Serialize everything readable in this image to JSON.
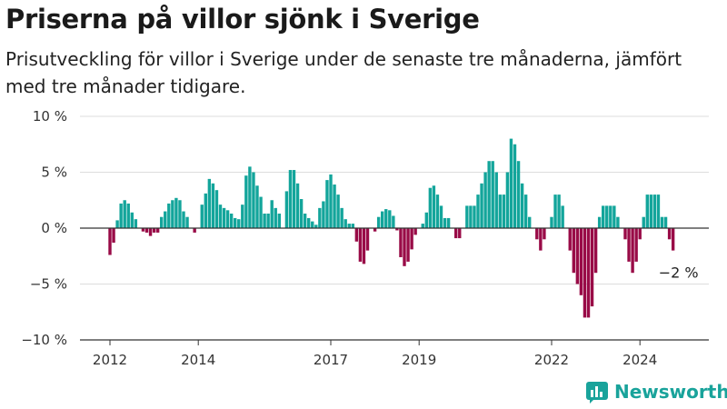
{
  "header": {
    "title": "Priserna på villor sjönk i Sverige",
    "subtitle": "Prisutveckling för villor i Sverige under de senaste tre månaderna, jämfört med tre månader tidigare."
  },
  "brand": {
    "name": "Newsworthy",
    "icon": "newsworthy-logo-icon"
  },
  "colors": {
    "positive": "#13a59b",
    "negative": "#990b47",
    "grid": "#dddddd",
    "axis": "#333333"
  },
  "chart_data": {
    "type": "bar",
    "title": "Priserna på villor sjönk i Sverige",
    "ylabel": "",
    "xlabel": "",
    "ylim": [
      -10,
      10
    ],
    "yticks": [
      {
        "value": 10,
        "label": "10 %"
      },
      {
        "value": 5,
        "label": "5 %"
      },
      {
        "value": 0,
        "label": "0 %"
      },
      {
        "value": -5,
        "label": "−5 %"
      },
      {
        "value": -10,
        "label": "−10 %"
      }
    ],
    "xticks": [
      {
        "value": 2012,
        "label": "2012"
      },
      {
        "value": 2014,
        "label": "2014"
      },
      {
        "value": 2017,
        "label": "2017"
      },
      {
        "value": 2019,
        "label": "2019"
      },
      {
        "value": 2022,
        "label": "2022"
      },
      {
        "value": 2024,
        "label": "2024"
      }
    ],
    "x_start": "2012-01",
    "frequency": "monthly",
    "annotation": {
      "label": "−2 %",
      "value": -2
    },
    "grid": "horizontal",
    "values": [
      -2.4,
      -1.3,
      0.7,
      2.2,
      2.5,
      2.2,
      1.4,
      0.8,
      0,
      -0.3,
      -0.4,
      -0.7,
      -0.4,
      -0.4,
      1.0,
      1.5,
      2.2,
      2.5,
      2.7,
      2.5,
      1.5,
      1.0,
      0,
      -0.4,
      0,
      2.1,
      3.1,
      4.4,
      4.0,
      3.4,
      2.1,
      1.8,
      1.6,
      1.3,
      0.9,
      0.8,
      2.1,
      4.7,
      5.5,
      5.0,
      3.8,
      2.8,
      1.3,
      1.3,
      2.5,
      1.8,
      1.3,
      0,
      3.3,
      5.2,
      5.2,
      4.0,
      2.6,
      1.3,
      0.9,
      0.6,
      0.3,
      1.8,
      2.4,
      4.3,
      4.8,
      3.9,
      3.0,
      1.8,
      0.8,
      0.4,
      0.4,
      -1.2,
      -3.0,
      -3.2,
      -2.0,
      0,
      -0.3,
      1.0,
      1.5,
      1.7,
      1.6,
      1.1,
      -0.2,
      -2.6,
      -3.4,
      -3.0,
      -1.9,
      -0.6,
      0,
      0.4,
      1.4,
      3.6,
      3.8,
      3.0,
      2.0,
      0.9,
      0.9,
      0,
      -0.9,
      -0.9,
      0,
      2.0,
      2.0,
      2.0,
      3.0,
      4.0,
      5.0,
      6.0,
      6.0,
      5.0,
      3.0,
      3.0,
      5.0,
      8.0,
      7.5,
      6.0,
      4.0,
      3.0,
      1.0,
      0,
      -1.0,
      -2.0,
      -1.0,
      0,
      1.0,
      3.0,
      3.0,
      2.0,
      0,
      -2.0,
      -4.0,
      -5.0,
      -6.0,
      -8.0,
      -8.0,
      -7.0,
      -4.0,
      1.0,
      2.0,
      2.0,
      2.0,
      2.0,
      1.0,
      0,
      -1.0,
      -3.0,
      -4.0,
      -3.0,
      -1.0,
      1.0,
      3.0,
      3.0,
      3.0,
      3.0,
      1.0,
      1.0,
      -1.0,
      -2.0
    ]
  }
}
